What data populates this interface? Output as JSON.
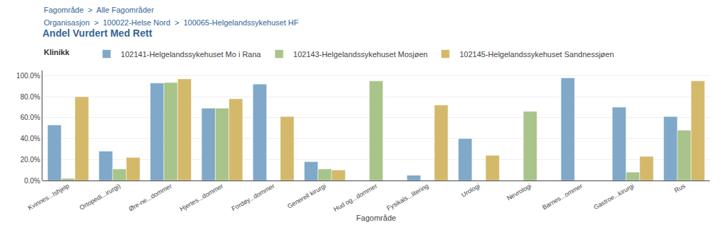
{
  "chart_data": {
    "type": "bar",
    "title": "Andel Vurdert Med Rett",
    "annotations": [
      "Fagområde  >  Alle Fagområder",
      "Organisasjon  >  100022-Helse Nord  >  100065-Helgelandssykehuset HF",
      "Klinikk"
    ],
    "xlabel": "Fagområde",
    "categories": [
      "Kvinnes...Ishjelp",
      "Ortopedi...irurgi)",
      "Øre-ne...dommer",
      "Hjertes...dommer",
      "Fordøy...dommer",
      "Generell kirurgi",
      "Hud og...dommer",
      "Fysikals...litering",
      "Urologi",
      "Nevrologi",
      "Barnes...ommer",
      "Gastroe...kirurgi",
      "Rus"
    ],
    "series": [
      {
        "name": "102141-Helgelandssykehuset Mo i Rana",
        "color": "#7fa8c9",
        "values": [
          53.0,
          28.0,
          93.0,
          69.0,
          92.0,
          18.0,
          null,
          5.0,
          40.0,
          null,
          98.0,
          70.0,
          61.0
        ]
      },
      {
        "name": "102143-Helgelandssykehuset Mosjøen",
        "color": "#a8c48a",
        "values": [
          2.0,
          11.0,
          93.5,
          69.0,
          null,
          11.0,
          95.0,
          null,
          null,
          66.0,
          null,
          8.0,
          48.0
        ]
      },
      {
        "name": "102145-Helgelandssykehuset Sandnessjøen",
        "color": "#d4b96a",
        "values": [
          80.0,
          22.0,
          97.0,
          78.0,
          61.0,
          10.0,
          null,
          72.0,
          24.0,
          null,
          null,
          23.0,
          95.0
        ]
      }
    ],
    "ylim": [
      0,
      105
    ],
    "yticks": [
      {
        "value": 0,
        "label": "0.0%"
      },
      {
        "value": 20,
        "label": "20.0%"
      },
      {
        "value": 40,
        "label": "40.0%"
      },
      {
        "value": 60,
        "label": "60.0%"
      },
      {
        "value": 80,
        "label": "80.0%"
      },
      {
        "value": 100,
        "label": "100.0%"
      }
    ],
    "grid": true,
    "legend": "top"
  }
}
